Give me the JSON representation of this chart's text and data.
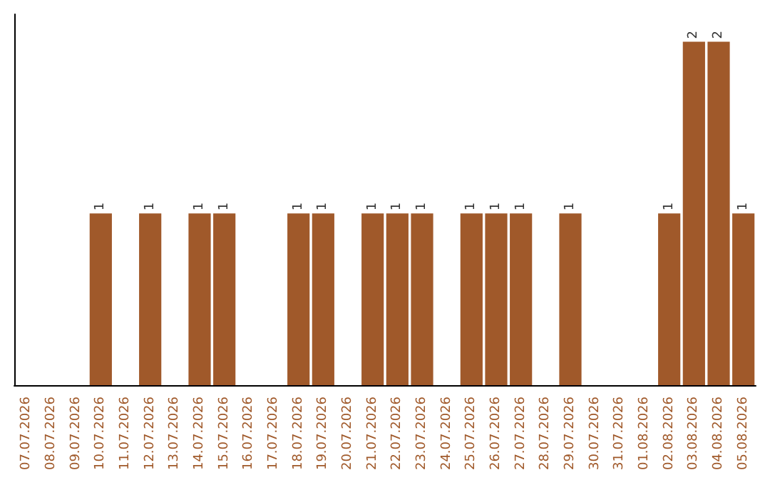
{
  "chart_data": {
    "type": "bar",
    "categories": [
      "07.07.2026",
      "08.07.2026",
      "09.07.2026",
      "10.07.2026",
      "11.07.2026",
      "12.07.2026",
      "13.07.2026",
      "14.07.2026",
      "15.07.2026",
      "16.07.2026",
      "17.07.2026",
      "18.07.2026",
      "19.07.2026",
      "20.07.2026",
      "21.07.2026",
      "22.07.2026",
      "23.07.2026",
      "24.07.2026",
      "25.07.2026",
      "26.07.2026",
      "27.07.2026",
      "28.07.2026",
      "29.07.2026",
      "30.07.2026",
      "31.07.2026",
      "01.08.2026",
      "02.08.2026",
      "03.08.2026",
      "04.08.2026",
      "05.08.2026"
    ],
    "values": [
      0,
      0,
      0,
      1,
      0,
      1,
      0,
      1,
      1,
      0,
      0,
      1,
      1,
      0,
      1,
      1,
      1,
      0,
      1,
      1,
      1,
      0,
      1,
      0,
      0,
      0,
      1,
      2,
      2,
      1
    ],
    "value_labels": [
      null,
      null,
      null,
      "1",
      null,
      "1",
      null,
      "1",
      "1",
      null,
      null,
      "1",
      "1",
      null,
      "1",
      "1",
      "1",
      null,
      "1",
      "1",
      "1",
      null,
      "1",
      null,
      null,
      null,
      "1",
      "2",
      "2",
      "1"
    ],
    "color": "#a0592a",
    "grid": false,
    "tick_labels": "x"
  }
}
